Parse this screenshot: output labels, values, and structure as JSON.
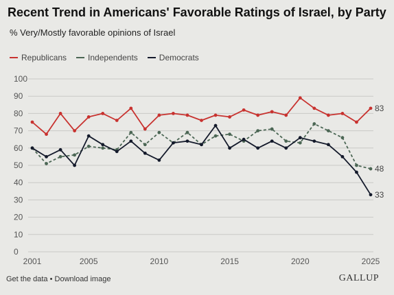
{
  "title": "Recent Trend in Americans' Favorable Ratings of Israel, by Party",
  "subtitle": "% Very/Mostly favorable opinions of Israel",
  "footer": {
    "links": "Get the data • Download image",
    "brand": "GALLUP"
  },
  "colors": {
    "republicans": "#c8322f",
    "independents": "#4b6654",
    "democrats": "#141a2b",
    "grid": "#c9c9c6",
    "axis_text": "#555555"
  },
  "chart_data": {
    "type": "line",
    "title": "Recent Trend in Americans' Favorable Ratings of Israel, by Party",
    "subtitle": "% Very/Mostly favorable opinions of Israel",
    "x": [
      2001,
      2002,
      2003,
      2004,
      2005,
      2006,
      2007,
      2008,
      2009,
      2010,
      2011,
      2012,
      2013,
      2014,
      2015,
      2016,
      2017,
      2018,
      2019,
      2020,
      2021,
      2022,
      2023,
      2024,
      2025
    ],
    "xticks": [
      2001,
      2005,
      2010,
      2015,
      2020,
      2025
    ],
    "xtick_labels": [
      "2001",
      "2005",
      "2010",
      "2015",
      "2020",
      "2025"
    ],
    "yticks": [
      0,
      10,
      20,
      30,
      40,
      50,
      60,
      70,
      80,
      90,
      100
    ],
    "ytick_labels": [
      "0",
      "10",
      "20",
      "30",
      "40",
      "50",
      "60",
      "70",
      "80",
      "90",
      "100"
    ],
    "ylim": [
      0,
      100
    ],
    "grid": true,
    "legend_position": "top-left",
    "series": [
      {
        "name": "Republicans",
        "style": "solid",
        "values": [
          75,
          68,
          80,
          70,
          78,
          80,
          76,
          83,
          71,
          79,
          80,
          79,
          76,
          79,
          78,
          82,
          79,
          81,
          79,
          89,
          83,
          79,
          80,
          75,
          83
        ],
        "end_label": "83"
      },
      {
        "name": "Independents",
        "style": "dashed",
        "values": [
          60,
          51,
          55,
          56,
          61,
          60,
          59,
          69,
          62,
          69,
          63,
          69,
          62,
          67,
          68,
          64,
          70,
          71,
          64,
          63,
          74,
          70,
          66,
          50,
          48
        ],
        "end_label": "48"
      },
      {
        "name": "Democrats",
        "style": "solid",
        "values": [
          60,
          55,
          59,
          50,
          67,
          62,
          58,
          64,
          57,
          53,
          63,
          64,
          62,
          73,
          60,
          65,
          60,
          64,
          60,
          66,
          64,
          62,
          55,
          46,
          33
        ],
        "end_label": "33"
      }
    ]
  }
}
